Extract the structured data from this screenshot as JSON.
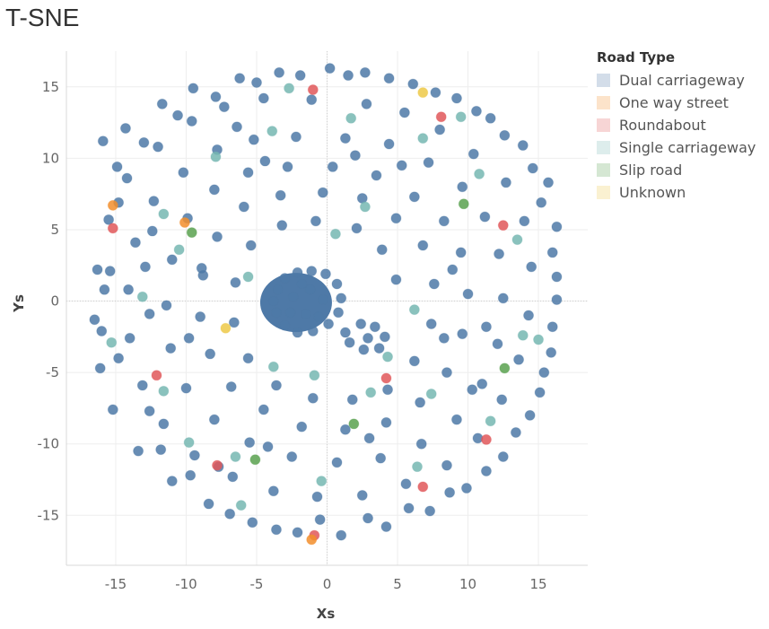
{
  "page": {
    "title": "T-SNE"
  },
  "chart_data": {
    "type": "scatter",
    "title": "T-SNE",
    "xlabel": "Xs",
    "ylabel": "Ys",
    "xlim": [
      -18.5,
      18.5
    ],
    "ylim": [
      -18.5,
      17.5
    ],
    "xticks": [
      -15,
      -10,
      -5,
      0,
      5,
      10,
      15
    ],
    "yticks": [
      -15,
      -10,
      -5,
      0,
      5,
      10,
      15
    ],
    "grid": true,
    "legend": {
      "title": "Road Type",
      "placement": "right",
      "items": [
        {
          "label": "Dual carriageway",
          "color": "#4e79a7"
        },
        {
          "label": "One way street",
          "color": "#f28e2b"
        },
        {
          "label": "Roundabout",
          "color": "#e15759"
        },
        {
          "label": "Single carriageway",
          "color": "#76b7b2"
        },
        {
          "label": "Slip road",
          "color": "#59a14f"
        },
        {
          "label": "Unknown",
          "color": "#edc948"
        }
      ]
    },
    "series": [
      {
        "name": "Dual carriageway",
        "color": "#4e79a7",
        "points": [
          [
            -15.9,
            11.2
          ],
          [
            -14.3,
            12.1
          ],
          [
            -11.7,
            13.8
          ],
          [
            -9.5,
            14.9
          ],
          [
            -6.2,
            15.6
          ],
          [
            -3.4,
            16.0
          ],
          [
            0.2,
            16.3
          ],
          [
            2.7,
            16.0
          ],
          [
            6.1,
            15.2
          ],
          [
            9.2,
            14.2
          ],
          [
            11.6,
            12.8
          ],
          [
            13.9,
            10.9
          ],
          [
            15.7,
            8.3
          ],
          [
            16.3,
            5.2
          ],
          [
            16.3,
            1.7
          ],
          [
            16.0,
            -1.8
          ],
          [
            15.4,
            -5.0
          ],
          [
            14.4,
            -8.0
          ],
          [
            12.5,
            -10.9
          ],
          [
            9.9,
            -13.1
          ],
          [
            7.3,
            -14.7
          ],
          [
            4.2,
            -15.8
          ],
          [
            1.0,
            -16.4
          ],
          [
            -2.1,
            -16.2
          ],
          [
            -5.3,
            -15.5
          ],
          [
            -8.4,
            -14.2
          ],
          [
            -11.0,
            -12.6
          ],
          [
            -13.4,
            -10.5
          ],
          [
            -15.2,
            -7.6
          ],
          [
            -16.1,
            -4.7
          ],
          [
            -16.5,
            -1.3
          ],
          [
            -16.3,
            2.2
          ],
          [
            -15.5,
            5.7
          ],
          [
            -14.2,
            8.6
          ],
          [
            -12.0,
            10.8
          ],
          [
            -9.6,
            12.6
          ],
          [
            -7.3,
            13.6
          ],
          [
            -4.5,
            14.2
          ],
          [
            -1.1,
            14.1
          ],
          [
            2.8,
            13.8
          ],
          [
            5.5,
            13.2
          ],
          [
            8.0,
            12.0
          ],
          [
            10.4,
            10.3
          ],
          [
            12.7,
            8.3
          ],
          [
            14.0,
            5.6
          ],
          [
            14.5,
            2.4
          ],
          [
            14.3,
            -1.0
          ],
          [
            13.6,
            -4.1
          ],
          [
            12.4,
            -6.9
          ],
          [
            10.7,
            -9.6
          ],
          [
            8.5,
            -11.5
          ],
          [
            5.6,
            -12.8
          ],
          [
            2.5,
            -13.6
          ],
          [
            -0.7,
            -13.7
          ],
          [
            -3.8,
            -13.3
          ],
          [
            -6.7,
            -12.3
          ],
          [
            -9.4,
            -10.8
          ],
          [
            -11.6,
            -8.6
          ],
          [
            -13.1,
            -5.9
          ],
          [
            -14.0,
            -2.6
          ],
          [
            -14.1,
            0.8
          ],
          [
            -13.6,
            4.1
          ],
          [
            -12.3,
            7.0
          ],
          [
            -10.2,
            9.0
          ],
          [
            -7.8,
            10.6
          ],
          [
            -5.2,
            11.3
          ],
          [
            -2.2,
            11.5
          ],
          [
            1.3,
            11.4
          ],
          [
            4.4,
            11.0
          ],
          [
            7.2,
            9.7
          ],
          [
            9.6,
            8.0
          ],
          [
            11.2,
            5.9
          ],
          [
            12.2,
            3.3
          ],
          [
            12.5,
            0.2
          ],
          [
            12.1,
            -3.0
          ],
          [
            11.0,
            -5.8
          ],
          [
            9.2,
            -8.3
          ],
          [
            6.7,
            -10.0
          ],
          [
            3.8,
            -11.0
          ],
          [
            0.7,
            -11.3
          ],
          [
            -2.5,
            -10.9
          ],
          [
            -5.5,
            -9.9
          ],
          [
            -8.0,
            -8.3
          ],
          [
            -10.0,
            -6.1
          ],
          [
            -11.1,
            -3.3
          ],
          [
            -11.4,
            -0.3
          ],
          [
            -11.0,
            2.9
          ],
          [
            -9.9,
            5.8
          ],
          [
            -8.0,
            7.8
          ],
          [
            -5.6,
            9.0
          ],
          [
            -2.8,
            9.4
          ],
          [
            0.4,
            9.4
          ],
          [
            3.5,
            8.8
          ],
          [
            6.2,
            7.3
          ],
          [
            8.3,
            5.6
          ],
          [
            9.5,
            3.4
          ],
          [
            10.0,
            0.5
          ],
          [
            9.6,
            -2.3
          ],
          [
            8.5,
            -5.0
          ],
          [
            6.6,
            -7.1
          ],
          [
            4.2,
            -8.5
          ],
          [
            1.3,
            -9.0
          ],
          [
            -1.8,
            -8.8
          ],
          [
            -4.5,
            -7.6
          ],
          [
            -6.8,
            -6.0
          ],
          [
            -8.3,
            -3.7
          ],
          [
            -9.0,
            -1.1
          ],
          [
            -8.8,
            1.8
          ],
          [
            -7.8,
            4.5
          ],
          [
            -5.9,
            6.6
          ],
          [
            -3.3,
            7.4
          ],
          [
            -0.3,
            7.6
          ],
          [
            2.5,
            7.2
          ],
          [
            4.9,
            5.8
          ],
          [
            6.8,
            3.9
          ],
          [
            7.6,
            1.2
          ],
          [
            7.4,
            -1.6
          ],
          [
            6.2,
            -4.2
          ],
          [
            4.3,
            -6.2
          ],
          [
            1.8,
            -6.9
          ],
          [
            -1.0,
            -6.8
          ],
          [
            -3.6,
            -5.9
          ],
          [
            -5.6,
            -4.0
          ],
          [
            -6.6,
            -1.5
          ],
          [
            -6.5,
            1.3
          ],
          [
            -5.4,
            3.9
          ],
          [
            -3.2,
            5.3
          ],
          [
            -0.8,
            5.6
          ],
          [
            2.1,
            5.1
          ],
          [
            3.9,
            3.6
          ],
          [
            4.9,
            1.5
          ],
          [
            -3.5,
            0.8
          ],
          [
            -3.0,
            1.6
          ],
          [
            -2.1,
            2.0
          ],
          [
            -1.1,
            2.1
          ],
          [
            -0.1,
            1.9
          ],
          [
            0.7,
            1.2
          ],
          [
            1.0,
            0.2
          ],
          [
            0.8,
            -0.8
          ],
          [
            0.1,
            -1.6
          ],
          [
            -1.0,
            -2.1
          ],
          [
            -2.1,
            -2.2
          ],
          [
            -3.0,
            -1.7
          ],
          [
            -3.6,
            -0.8
          ],
          [
            -3.8,
            0.0
          ],
          [
            -2.4,
            0.3
          ],
          [
            -1.2,
            0.8
          ],
          [
            -0.3,
            0.1
          ],
          [
            -1.5,
            -0.9
          ],
          [
            -2.6,
            -0.8
          ],
          [
            -0.6,
            -1.1
          ],
          [
            -1.8,
            1.2
          ],
          [
            1.3,
            -2.2
          ],
          [
            2.4,
            -1.6
          ],
          [
            3.4,
            -1.8
          ],
          [
            4.1,
            -2.5
          ],
          [
            3.7,
            -3.3
          ],
          [
            2.6,
            -3.4
          ],
          [
            1.6,
            -2.9
          ],
          [
            2.9,
            -2.6
          ],
          [
            -16.0,
            -2.1
          ],
          [
            -15.8,
            0.8
          ],
          [
            -14.8,
            -4.0
          ],
          [
            -12.6,
            -7.7
          ],
          [
            -12.9,
            2.4
          ],
          [
            -12.4,
            4.9
          ],
          [
            -11.8,
            -10.4
          ],
          [
            -9.7,
            -12.2
          ],
          [
            -6.9,
            -14.9
          ],
          [
            -3.6,
            -16.0
          ],
          [
            -0.5,
            -15.3
          ],
          [
            2.9,
            -15.2
          ],
          [
            5.8,
            -14.5
          ],
          [
            8.7,
            -13.4
          ],
          [
            11.3,
            -11.9
          ],
          [
            13.4,
            -9.2
          ],
          [
            15.1,
            -6.4
          ],
          [
            15.9,
            -3.6
          ],
          [
            16.3,
            0.1
          ],
          [
            16.0,
            3.4
          ],
          [
            15.2,
            6.9
          ],
          [
            14.6,
            9.3
          ],
          [
            12.6,
            11.6
          ],
          [
            10.6,
            13.3
          ],
          [
            7.7,
            14.6
          ],
          [
            4.4,
            15.6
          ],
          [
            1.5,
            15.8
          ],
          [
            -1.9,
            15.8
          ],
          [
            -5.0,
            15.3
          ],
          [
            -7.9,
            14.3
          ],
          [
            -10.6,
            13.0
          ],
          [
            -13.0,
            11.1
          ],
          [
            -14.9,
            9.4
          ],
          [
            -15.4,
            2.1
          ],
          [
            -14.8,
            6.9
          ],
          [
            -8.9,
            2.3
          ],
          [
            -9.8,
            -2.6
          ],
          [
            -4.2,
            -10.2
          ],
          [
            3.0,
            -9.6
          ],
          [
            8.3,
            -2.6
          ],
          [
            8.9,
            2.2
          ],
          [
            -4.4,
            9.8
          ],
          [
            2.0,
            10.2
          ],
          [
            5.3,
            9.5
          ],
          [
            -7.7,
            -11.6
          ],
          [
            10.3,
            -6.2
          ],
          [
            11.3,
            -1.8
          ],
          [
            -12.6,
            -0.9
          ],
          [
            -6.4,
            12.2
          ]
        ]
      },
      {
        "name": "Single carriageway",
        "color": "#76b7b2",
        "points": [
          [
            -7.9,
            10.1
          ],
          [
            -3.9,
            11.9
          ],
          [
            1.7,
            12.8
          ],
          [
            6.8,
            11.4
          ],
          [
            10.8,
            8.9
          ],
          [
            13.5,
            4.3
          ],
          [
            13.9,
            -2.4
          ],
          [
            11.6,
            -8.4
          ],
          [
            6.4,
            -11.6
          ],
          [
            -0.4,
            -12.6
          ],
          [
            -6.5,
            -10.9
          ],
          [
            -11.6,
            -6.3
          ],
          [
            -13.1,
            0.3
          ],
          [
            -11.6,
            6.1
          ],
          [
            -5.6,
            1.7
          ],
          [
            6.2,
            -0.6
          ],
          [
            3.1,
            -6.4
          ],
          [
            -3.8,
            -4.6
          ],
          [
            0.6,
            4.7
          ],
          [
            -9.8,
            -9.9
          ],
          [
            9.5,
            12.9
          ],
          [
            -6.1,
            -14.3
          ],
          [
            15.0,
            -2.7
          ],
          [
            -15.3,
            -2.9
          ],
          [
            -2.7,
            14.9
          ],
          [
            4.3,
            -3.9
          ],
          [
            -10.5,
            3.6
          ],
          [
            7.4,
            -6.5
          ],
          [
            -0.9,
            -5.2
          ],
          [
            2.7,
            6.6
          ]
        ]
      },
      {
        "name": "Slip road",
        "color": "#59a14f",
        "points": [
          [
            -9.6,
            4.8
          ],
          [
            1.9,
            -8.6
          ],
          [
            9.7,
            6.8
          ],
          [
            -5.1,
            -11.1
          ],
          [
            12.6,
            -4.7
          ]
        ]
      },
      {
        "name": "Roundabout",
        "color": "#e15759",
        "points": [
          [
            -15.2,
            5.1
          ],
          [
            -12.1,
            -5.2
          ],
          [
            -7.8,
            -11.5
          ],
          [
            -0.9,
            -16.4
          ],
          [
            6.8,
            -13.0
          ],
          [
            11.3,
            -9.7
          ],
          [
            12.5,
            5.3
          ],
          [
            8.1,
            12.9
          ],
          [
            -1.0,
            14.8
          ],
          [
            4.2,
            -5.4
          ]
        ]
      },
      {
        "name": "One way street",
        "color": "#f28e2b",
        "points": [
          [
            -15.2,
            6.7
          ],
          [
            -1.1,
            -16.7
          ],
          [
            -10.1,
            5.5
          ]
        ]
      },
      {
        "name": "Unknown",
        "color": "#edc948",
        "points": [
          [
            6.8,
            14.6
          ],
          [
            -7.2,
            -1.9
          ]
        ]
      }
    ]
  }
}
